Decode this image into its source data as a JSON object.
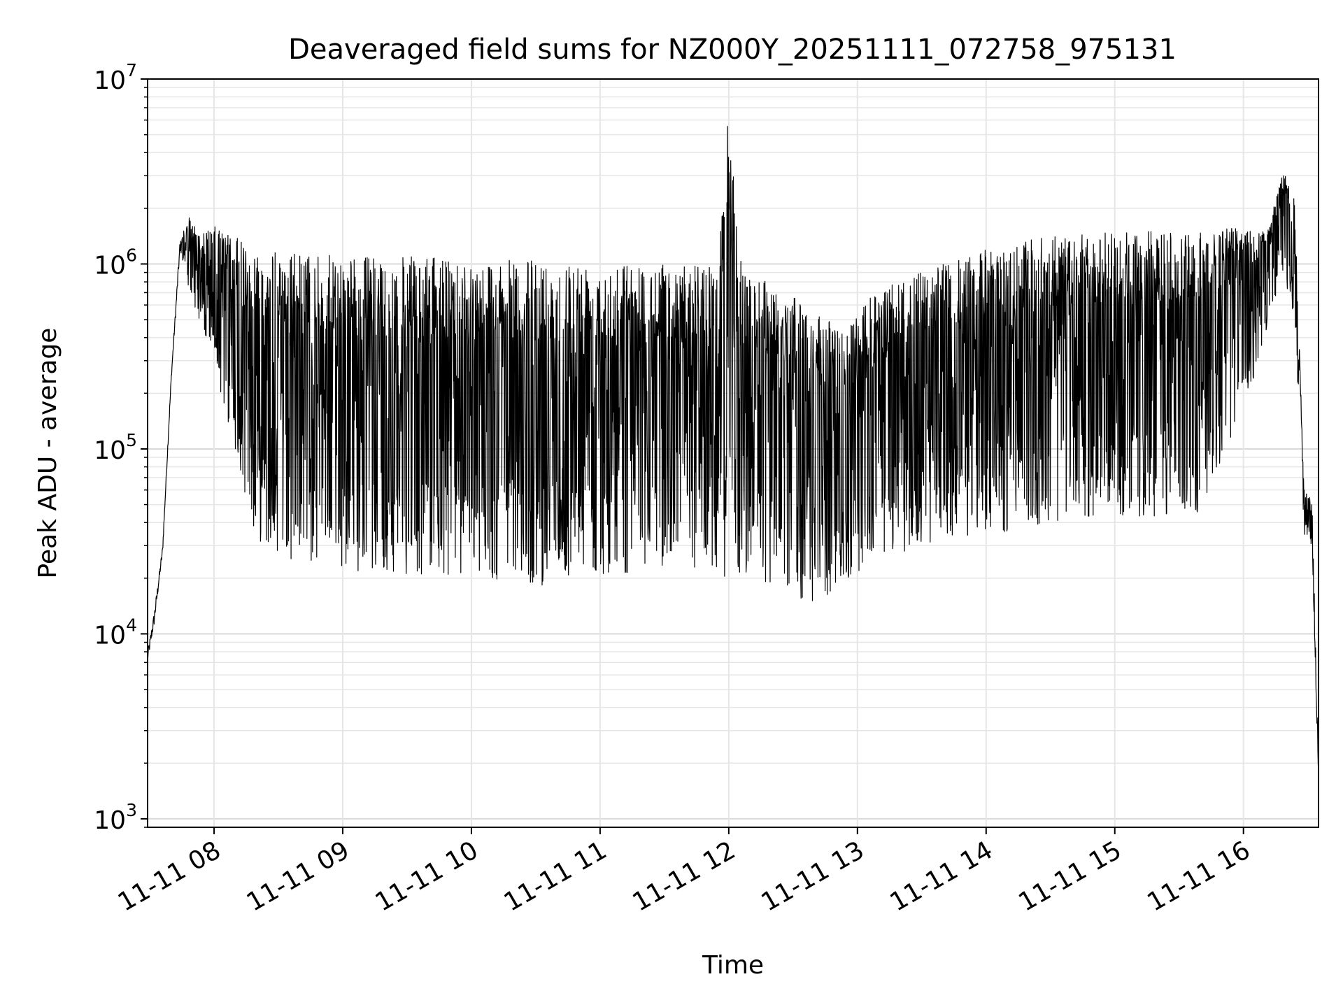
{
  "chart_data": {
    "type": "line",
    "title": "Deaveraged field sums for NZ000Y_20251111_072758_975131",
    "xlabel": "Time",
    "ylabel": "Peak ADU - average",
    "yscale": "log",
    "xlim": [
      "2025-11-11 07:29",
      "2025-11-11 16:35"
    ],
    "ylim": [
      900,
      10000000
    ],
    "grid": "major and minor",
    "x_ticks": [
      "11-11 08",
      "11-11 09",
      "11-11 10",
      "11-11 11",
      "11-11 12",
      "11-11 13",
      "11-11 14",
      "11-11 15",
      "11-11 16"
    ],
    "y_ticks": [
      {
        "base": "10",
        "exp": "3"
      },
      {
        "base": "10",
        "exp": "4"
      },
      {
        "base": "10",
        "exp": "5"
      },
      {
        "base": "10",
        "exp": "6"
      },
      {
        "base": "10",
        "exp": "7"
      }
    ],
    "series": [
      {
        "color": "#000000",
        "envelope": {
          "x": [
            "2025-11-11 07:29",
            "2025-11-11 07:32",
            "2025-11-11 07:36",
            "2025-11-11 07:40",
            "2025-11-11 07:44",
            "2025-11-11 07:48",
            "2025-11-11 07:52",
            "2025-11-11 07:56",
            "2025-11-11 08:00",
            "2025-11-11 08:10",
            "2025-11-11 08:20",
            "2025-11-11 08:40",
            "2025-11-11 09:00",
            "2025-11-11 09:30",
            "2025-11-11 10:00",
            "2025-11-11 10:30",
            "2025-11-11 11:00",
            "2025-11-11 11:30",
            "2025-11-11 11:55",
            "2025-11-11 12:00",
            "2025-11-11 12:05",
            "2025-11-11 12:20",
            "2025-11-11 12:40",
            "2025-11-11 12:55",
            "2025-11-11 13:10",
            "2025-11-11 13:30",
            "2025-11-11 13:50",
            "2025-11-11 14:10",
            "2025-11-11 14:40",
            "2025-11-11 15:10",
            "2025-11-11 15:40",
            "2025-11-11 16:00",
            "2025-11-11 16:12",
            "2025-11-11 16:18",
            "2025-11-11 16:24",
            "2025-11-11 16:28",
            "2025-11-11 16:32",
            "2025-11-11 16:35"
          ],
          "high": [
            8000,
            13000,
            30000,
            250000,
            1300000,
            1800000,
            1600000,
            1500000,
            1600000,
            1400000,
            1200000,
            1150000,
            1100000,
            1100000,
            1050000,
            1050000,
            1050000,
            1000000,
            1000000,
            7000000,
            1100000,
            800000,
            550000,
            450000,
            750000,
            900000,
            1100000,
            1300000,
            1450000,
            1500000,
            1550000,
            1600000,
            1600000,
            3300000,
            2300000,
            70000,
            50000,
            2000
          ],
          "low": [
            7000,
            11000,
            27000,
            230000,
            1100000,
            700000,
            550000,
            380000,
            280000,
            90000,
            32000,
            24000,
            22000,
            21000,
            20000,
            18000,
            21000,
            22000,
            20000,
            18000,
            20000,
            18000,
            14000,
            19000,
            25000,
            30000,
            33000,
            35000,
            40000,
            42000,
            45000,
            150000,
            500000,
            900000,
            500000,
            35000,
            30000,
            1500
          ]
        }
      }
    ]
  }
}
